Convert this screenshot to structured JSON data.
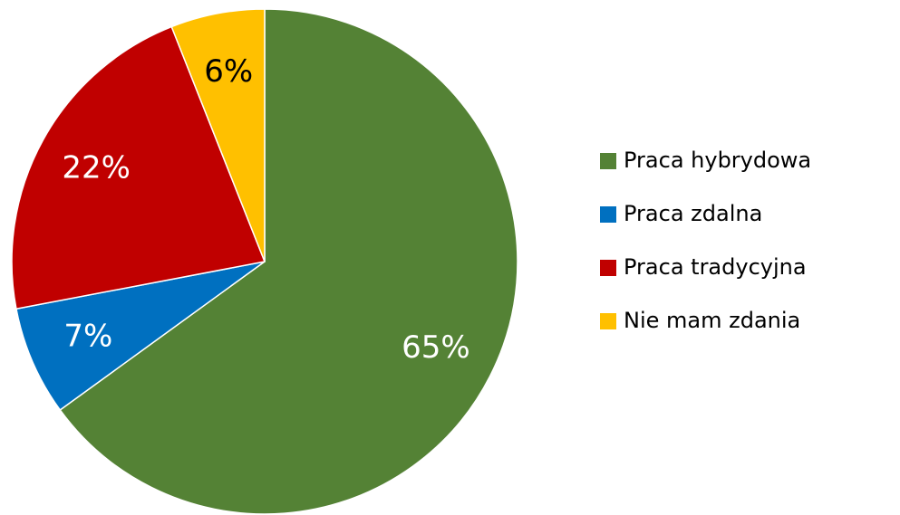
{
  "chart_data": {
    "type": "pie",
    "categories": [
      "Praca hybrydowa",
      "Praca zdalna",
      "Praca tradycyjna",
      "Nie mam zdania"
    ],
    "values": [
      65,
      7,
      22,
      6
    ],
    "value_labels": [
      "65%",
      "7%",
      "22%",
      "6%"
    ],
    "colors": [
      "#548235",
      "#0070c0",
      "#c00000",
      "#ffc000"
    ],
    "legend": "right"
  }
}
